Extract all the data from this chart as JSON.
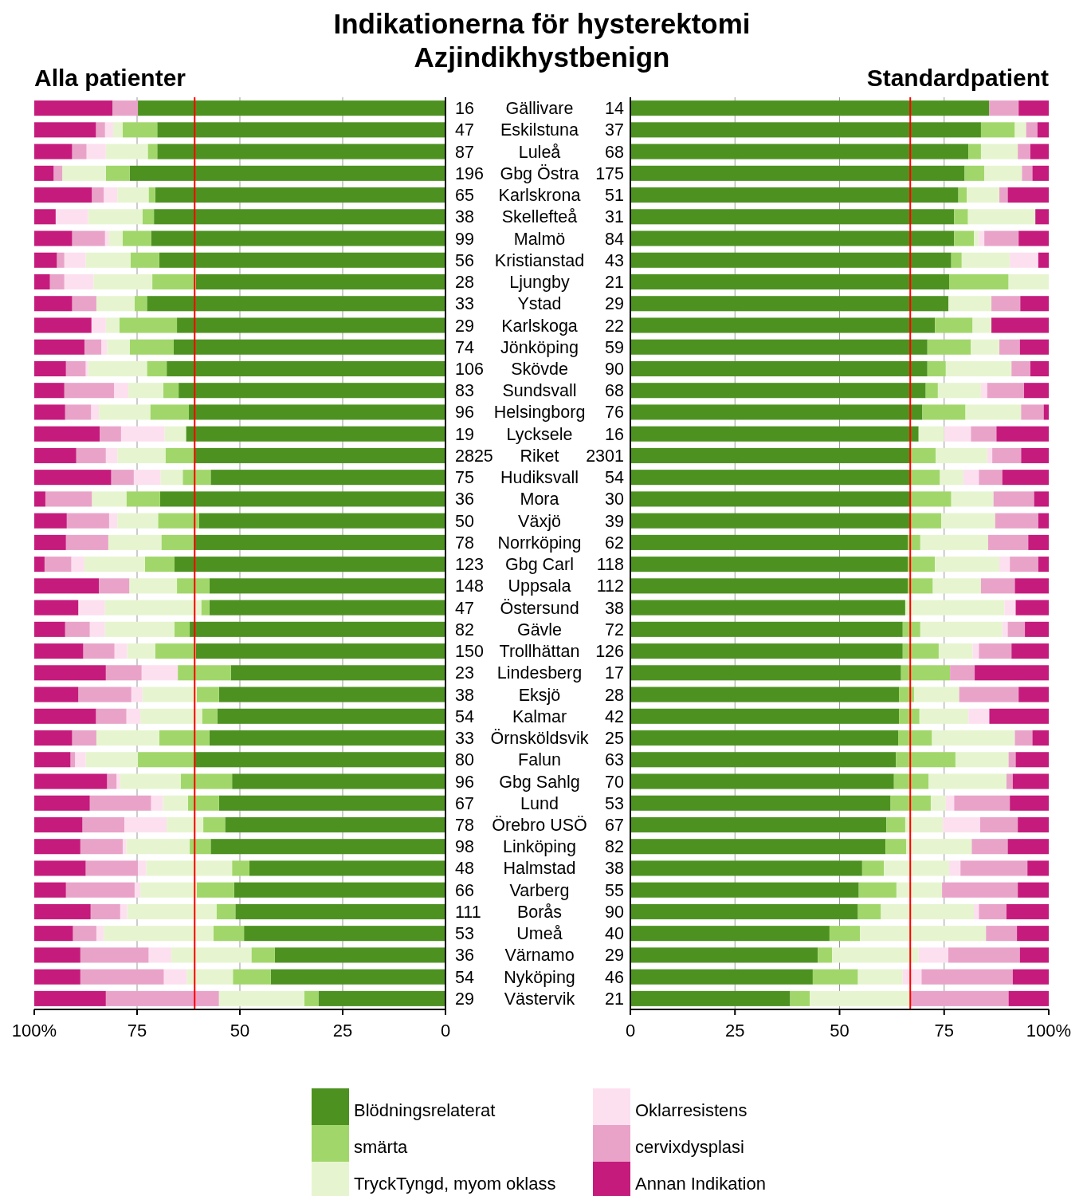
{
  "chart_data": [
    {
      "type": "bar",
      "orientation": "horizontal",
      "stacked": true,
      "title": "Alla patienter",
      "annotations": [
        "Indikationerna för hysterektomi",
        "Azjindikhystbenign"
      ],
      "categories": [
        "16",
        "47",
        "87",
        "196",
        "65",
        "38",
        "99",
        "56",
        "28",
        "33",
        "29",
        "74",
        "106",
        "83",
        "96",
        "19",
        "2825",
        "75",
        "36",
        "50",
        "78",
        "123",
        "148",
        "47",
        "82",
        "150",
        "23",
        "38",
        "54",
        "33",
        "80",
        "96",
        "67",
        "78",
        "98",
        "48",
        "66",
        "111",
        "53",
        "36",
        "54",
        "29"
      ],
      "series": [
        {
          "color": "#4d9221",
          "values": [
            74.8,
            70.1,
            70.1,
            76.8,
            70.6,
            70.9,
            71.6,
            69.6,
            60.7,
            72.6,
            65.3,
            66.1,
            67.8,
            64.9,
            62.4,
            63.1,
            61.0,
            57.1,
            69.4,
            59.9,
            61.3,
            65.9,
            57.4,
            57.4,
            62.2,
            60.7,
            52.2,
            55.1,
            55.5,
            57.4,
            61.2,
            51.9,
            55.1,
            53.6,
            57.1,
            47.7,
            51.4,
            51.1,
            49.0,
            41.5,
            42.5,
            30.9
          ]
        },
        {
          "color": "#a1d76a",
          "values": [
            0,
            8.4,
            2.3,
            5.8,
            1.6,
            2.8,
            6.9,
            7.0,
            10.6,
            3.0,
            14.0,
            10.7,
            4.8,
            3.7,
            9.4,
            0,
            7.1,
            6.8,
            8.2,
            10.0,
            7.8,
            7.2,
            7.9,
            2.0,
            3.7,
            9.9,
            12.9,
            5.4,
            3.7,
            12.2,
            13.6,
            12.5,
            7.5,
            5.3,
            5.1,
            4.2,
            9.1,
            4.6,
            7.4,
            5.7,
            9.2,
            3.4
          ]
        },
        {
          "color": "#e6f5d0",
          "values": [
            0,
            2.3,
            10.2,
            10.6,
            7.6,
            13.2,
            3.3,
            10.9,
            14.3,
            9.3,
            3.3,
            5.5,
            14.3,
            8.5,
            12.5,
            5.2,
            11.7,
            5.4,
            8.4,
            9.9,
            12.9,
            14.7,
            11.6,
            23.4,
            16.9,
            6.8,
            0,
            13.2,
            15.0,
            15.3,
            12.7,
            14.7,
            6.1,
            8.9,
            15.4,
            20.9,
            13.7,
            21.7,
            26.7,
            19.5,
            11.2,
            20.8
          ]
        },
        {
          "color": "#fde0ef",
          "values": [
            0,
            2.0,
            4.7,
            0,
            3.3,
            7.9,
            1.0,
            5.2,
            7.1,
            0,
            3.5,
            1.4,
            0.6,
            3.5,
            1.9,
            10.6,
            2.8,
            6.5,
            0,
            2.0,
            0,
            3.2,
            0,
            6.5,
            3.7,
            3.1,
            8.8,
            2.7,
            3.4,
            0,
            2.6,
            0.9,
            2.9,
            10.3,
            0.9,
            2.0,
            1.4,
            1.7,
            1.8,
            5.5,
            5.6,
            0
          ]
        },
        {
          "color": "#e9a3c9",
          "values": [
            6.2,
            2.2,
            3.5,
            2.1,
            2.9,
            0,
            8.0,
            1.8,
            3.5,
            5.9,
            0,
            4.1,
            4.8,
            12.1,
            6.3,
            5.2,
            7.2,
            5.5,
            11.3,
            10.3,
            10.3,
            6.5,
            7.4,
            0,
            6.0,
            7.6,
            8.7,
            12.9,
            7.4,
            5.9,
            1.1,
            2.3,
            14.9,
            10.2,
            10.3,
            12.7,
            16.7,
            7.2,
            5.7,
            16.6,
            20.3,
            27.5
          ]
        },
        {
          "color": "#c51b7d",
          "values": [
            19.0,
            15.0,
            9.2,
            4.7,
            14.0,
            5.2,
            9.2,
            5.5,
            3.8,
            9.2,
            13.9,
            12.2,
            7.7,
            7.3,
            7.5,
            15.9,
            10.2,
            18.7,
            2.7,
            7.9,
            7.7,
            2.5,
            15.7,
            10.7,
            7.5,
            11.9,
            17.4,
            10.7,
            15.0,
            9.2,
            8.8,
            17.7,
            13.5,
            11.7,
            11.2,
            12.5,
            7.7,
            13.7,
            9.4,
            11.2,
            11.2,
            17.4
          ]
        }
      ],
      "xlim": [
        100,
        0
      ],
      "xticks": [
        {
          "value": 100,
          "label": "100%"
        },
        75,
        50,
        25,
        0
      ],
      "grid": "x",
      "ref_lines": [
        {
          "axis": "x",
          "value": 61.0,
          "color": "#ff0000"
        }
      ]
    },
    {
      "type": "other",
      "annotations": [
        "Gällivare",
        "Eskilstuna",
        "Luleå",
        "Gbg Östra",
        "Karlskrona",
        "Skellefteå",
        "Malmö",
        "Kristianstad",
        "Ljungby",
        "Ystad",
        "Karlskoga",
        "Jönköping",
        "Skövde",
        "Sundsvall",
        "Helsingborg",
        "Lycksele",
        "Riket",
        "Hudiksvall",
        "Mora",
        "Växjö",
        "Norrköping",
        "Gbg Carl",
        "Uppsala",
        "Östersund",
        "Gävle",
        "Trollhättan",
        "Lindesberg",
        "Eksjö",
        "Kalmar",
        "Örnsköldsvik",
        "Falun",
        "Gbg Sahlg",
        "Lund",
        "Örebro USÖ",
        "Linköping",
        "Halmstad",
        "Varberg",
        "Borås",
        "Umeå",
        "Värnamo",
        "Nyköping",
        "Västervik"
      ]
    },
    {
      "type": "bar",
      "orientation": "horizontal",
      "stacked": true,
      "title": "Standardpatient",
      "categories": [
        "14",
        "37",
        "68",
        "175",
        "51",
        "31",
        "84",
        "43",
        "21",
        "29",
        "22",
        "59",
        "90",
        "68",
        "76",
        "16",
        "2301",
        "54",
        "30",
        "39",
        "62",
        "118",
        "112",
        "38",
        "72",
        "126",
        "17",
        "28",
        "42",
        "25",
        "63",
        "70",
        "53",
        "67",
        "82",
        "38",
        "55",
        "90",
        "40",
        "29",
        "46",
        "21"
      ],
      "series": [
        {
          "name": "Blödningsrelaterat",
          "color": "#4d9221",
          "values": [
            85.8,
            83.8,
            80.8,
            79.9,
            78.4,
            77.4,
            77.4,
            76.7,
            76.2,
            76.0,
            72.8,
            71.0,
            71.0,
            70.6,
            69.8,
            68.9,
            66.9,
            66.9,
            66.9,
            66.9,
            66.3,
            66.3,
            66.3,
            65.7,
            65.1,
            65.1,
            64.7,
            64.2,
            64.2,
            64.0,
            63.5,
            63.0,
            62.2,
            61.2,
            61.0,
            55.4,
            54.6,
            54.4,
            47.6,
            44.8,
            43.6,
            38.2
          ]
        },
        {
          "name": "smärta",
          "color": "#a1d76a",
          "values": [
            0,
            8.1,
            3.0,
            4.7,
            2.0,
            3.3,
            4.7,
            2.5,
            14.2,
            0,
            9.0,
            10.4,
            4.4,
            2.9,
            10.3,
            0,
            6.1,
            7.1,
            9.8,
            7.4,
            3.0,
            6.5,
            6.0,
            0,
            4.2,
            8.6,
            11.7,
            3.6,
            4.9,
            8.1,
            14.2,
            8.3,
            9.6,
            4.5,
            4.9,
            5.2,
            9.0,
            5.5,
            7.3,
            3.4,
            10.8,
            4.7
          ]
        },
        {
          "name": "TryckTyngd, myom oklass",
          "color": "#e6f5d0",
          "values": [
            0,
            2.7,
            8.8,
            9.0,
            7.8,
            16.1,
            1.2,
            11.5,
            9.6,
            10.3,
            4.5,
            6.8,
            15.7,
            10.3,
            13.3,
            6.1,
            12.3,
            5.6,
            10.1,
            12.9,
            16.2,
            15.4,
            11.5,
            23.7,
            19.6,
            8.1,
            0,
            10.8,
            11.7,
            19.8,
            12.7,
            18.6,
            3.6,
            9.0,
            15.7,
            15.6,
            10.9,
            22.2,
            30.1,
            20.7,
            10.7,
            24.0
          ]
        },
        {
          "name": "Oklarresistens",
          "color": "#fde0ef",
          "values": [
            0,
            0,
            0,
            0,
            0,
            0,
            1.3,
            6.8,
            0,
            0,
            0,
            0,
            0,
            1.5,
            0,
            6.4,
            1.2,
            3.7,
            0,
            0,
            0,
            2.5,
            0,
            2.7,
            1.3,
            1.5,
            0,
            0,
            5.0,
            0,
            0,
            0,
            2.0,
            8.9,
            0,
            2.7,
            0,
            1.2,
            0,
            7.1,
            4.5,
            0
          ]
        },
        {
          "name": "cervixdysplasi",
          "color": "#e9a3c9",
          "values": [
            7.0,
            2.7,
            3.0,
            2.5,
            2.0,
            0,
            8.2,
            0,
            0,
            6.9,
            0,
            4.9,
            4.5,
            8.8,
            5.4,
            6.1,
            6.9,
            5.6,
            9.7,
            10.3,
            9.6,
            6.8,
            8.1,
            0,
            4.1,
            7.8,
            5.9,
            14.2,
            0,
            4.2,
            1.7,
            1.5,
            13.3,
            9.0,
            8.6,
            16.0,
            18.1,
            6.6,
            7.4,
            17.1,
            21.8,
            23.5
          ]
        },
        {
          "name": "Annan Indikation",
          "color": "#c51b7d",
          "values": [
            7.2,
            2.7,
            4.4,
            3.9,
            9.8,
            3.2,
            7.2,
            2.5,
            0,
            6.8,
            13.7,
            6.9,
            4.4,
            5.9,
            1.2,
            12.5,
            6.6,
            11.1,
            3.5,
            2.5,
            4.9,
            2.5,
            8.1,
            7.9,
            5.7,
            8.9,
            17.7,
            7.2,
            14.2,
            3.9,
            7.9,
            8.6,
            9.3,
            7.4,
            9.8,
            5.1,
            7.4,
            10.1,
            7.6,
            6.9,
            8.6,
            9.6
          ]
        }
      ],
      "xlim": [
        0,
        100
      ],
      "xticks": [
        0,
        25,
        50,
        75,
        {
          "value": 100,
          "label": "100%"
        }
      ],
      "grid": "x",
      "legend": "bottom",
      "ref_lines": [
        {
          "axis": "x",
          "value": 66.9,
          "color": "#ff0000"
        }
      ]
    }
  ]
}
